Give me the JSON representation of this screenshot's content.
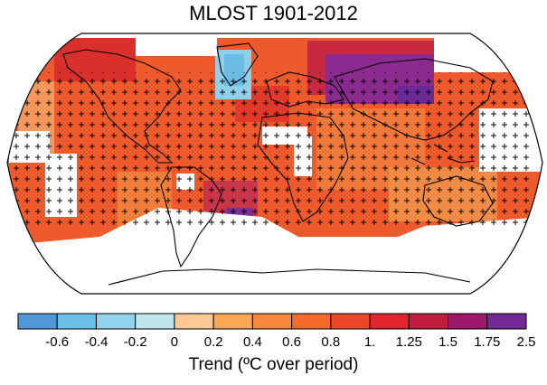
{
  "title": "MLOST 1901-2012",
  "legend": {
    "title": "Trend (ºC over period)",
    "tick_labels": [
      "-0.6",
      "-0.4",
      "-0.2",
      "0",
      "0.2",
      "0.4",
      "0.6",
      "0.8",
      "1.",
      "1.25",
      "1.5",
      "1.75",
      "2.5"
    ],
    "bins": [
      {
        "color": "#4f97d6"
      },
      {
        "color": "#6bc0ea"
      },
      {
        "color": "#93d3ee"
      },
      {
        "color": "#bde6ef"
      },
      {
        "color": "#fcc995"
      },
      {
        "color": "#faa856"
      },
      {
        "color": "#f7873a"
      },
      {
        "color": "#f36a2c"
      },
      {
        "color": "#ee4628"
      },
      {
        "color": "#e1252c"
      },
      {
        "color": "#c21c3c"
      },
      {
        "color": "#9d176a"
      },
      {
        "color": "#722a96"
      }
    ]
  },
  "map": {
    "projection": "robinson",
    "field": "surface temperature trend 1901-2012",
    "dominant_color": "#ee5a2c",
    "missing_data_color": "#ffffff",
    "significance_marker": "+"
  }
}
